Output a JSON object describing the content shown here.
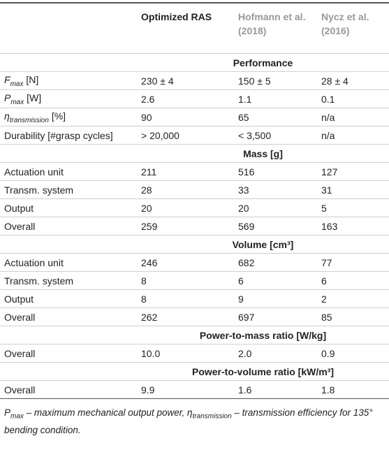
{
  "table": {
    "columns": [
      "Optimized RAS",
      "Hofmann et al. (2018)",
      "Nycz et al. (2016)"
    ],
    "sections": [
      {
        "title": "Performance",
        "rows": [
          {
            "label": {
              "symbol": "F",
              "sub": "max",
              "unit": "[N]"
            },
            "cells": [
              "230 ± 4",
              "150 ± 5",
              "28 ± 4"
            ]
          },
          {
            "label": {
              "symbol": "P",
              "sub": "max",
              "unit": "[W]"
            },
            "cells": [
              "2.6",
              "1.1",
              "0.1"
            ]
          },
          {
            "label": {
              "symbol": "η",
              "sub": "transmission",
              "unit": "[%]"
            },
            "cells": [
              "90",
              "65",
              "n/a"
            ]
          },
          {
            "label": "Durability [#grasp cycles]",
            "cells": [
              "> 20,000",
              "< 3,500",
              "n/a"
            ]
          }
        ]
      },
      {
        "title": "Mass [g]",
        "rows": [
          {
            "label": "Actuation unit",
            "cells": [
              "211",
              "516",
              "127"
            ]
          },
          {
            "label": "Transm. system",
            "cells": [
              "28",
              "33",
              "31"
            ]
          },
          {
            "label": "Output",
            "cells": [
              "20",
              "20",
              "5"
            ]
          },
          {
            "label": "Overall",
            "cells": [
              "259",
              "569",
              "163"
            ]
          }
        ]
      },
      {
        "title": "Volume [cm³]",
        "rows": [
          {
            "label": "Actuation unit",
            "cells": [
              "246",
              "682",
              "77"
            ]
          },
          {
            "label": "Transm. system",
            "cells": [
              "8",
              "6",
              "6"
            ]
          },
          {
            "label": "Output",
            "cells": [
              "8",
              "9",
              "2"
            ]
          },
          {
            "label": "Overall",
            "cells": [
              "262",
              "697",
              "85"
            ]
          }
        ]
      },
      {
        "title": "Power-to-mass ratio [W/kg]",
        "rows": [
          {
            "label": "Overall",
            "cells": [
              "10.0",
              "2.0",
              "0.9"
            ]
          }
        ]
      },
      {
        "title": "Power-to-volume ratio [kW/m³]",
        "rows": [
          {
            "label": "Overall",
            "cells": [
              "9.9",
              "1.6",
              "1.8"
            ]
          }
        ]
      }
    ]
  },
  "footnote": [
    {
      "symbol": "P",
      "sub": "max"
    },
    {
      "text": " – maximum mechanical output power, "
    },
    {
      "symbol": "η",
      "sub": "transmission"
    },
    {
      "text": " – transmission efficiency for 135° bending condition."
    }
  ]
}
